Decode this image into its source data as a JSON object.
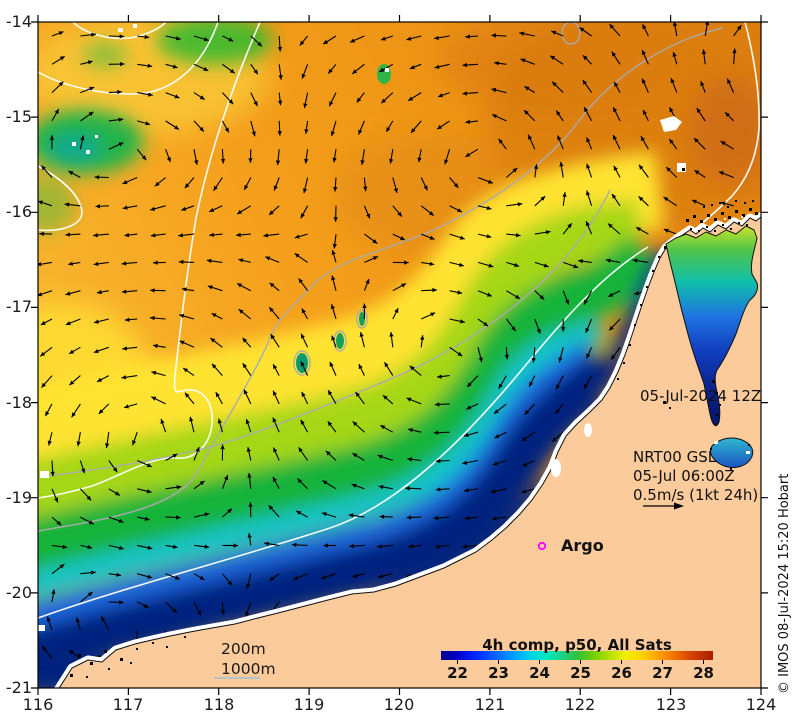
{
  "axes": {
    "x_labels": [
      "116",
      "117",
      "118",
      "119",
      "120",
      "121",
      "122",
      "123",
      "124"
    ],
    "y_labels": [
      "-14",
      "-15",
      "-16",
      "-17",
      "-18",
      "-19",
      "-20",
      "-21"
    ]
  },
  "annotations": {
    "timestamp": "05-Jul-2024 12Z",
    "product": "NRT00 GSL",
    "product_time": "05-Jul 06:00Z",
    "vector_scale": "0.5m/s (1kt 24h)",
    "argo": "Argo",
    "depth_200": "200m",
    "depth_1000": "1000m"
  },
  "colorbar": {
    "title": "4h comp, p50, All Sats",
    "ticks": [
      "22",
      "23",
      "24",
      "25",
      "26",
      "27",
      "28"
    ]
  },
  "credit": "© IMOS 08-Jul-2024 15:20 Hobart",
  "colors": {
    "land": "#FBCB9B",
    "warm_max": "#A81E00",
    "cold_min": "#00008C",
    "argo_marker": "#FF00FF",
    "contour_white": "#FFFFFF",
    "contour_gray": "#ABABAB",
    "depth_line": "#9FC0D8"
  }
}
